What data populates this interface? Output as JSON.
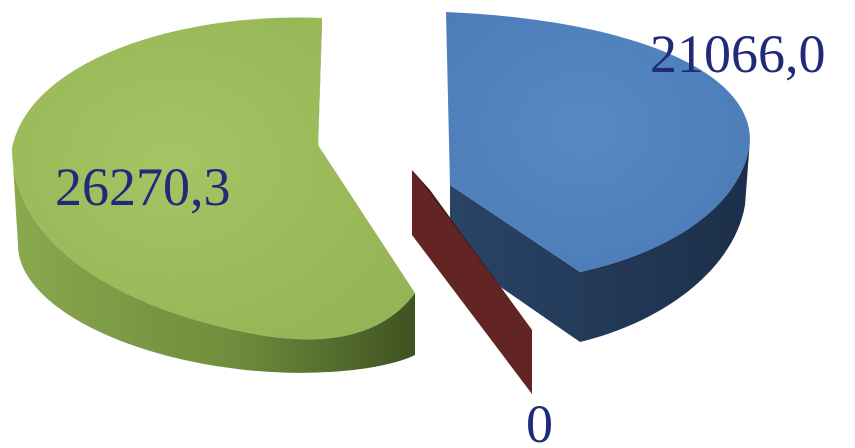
{
  "chart_data": {
    "type": "pie",
    "style": "3d-exploded",
    "title": "",
    "slices": [
      {
        "label": "21066,0",
        "value": 21066.0,
        "color": "#4f81bd",
        "side_color": "#1f3350"
      },
      {
        "label": "0",
        "value": 0,
        "color": "#632523",
        "side_color": "#4a1d1b"
      },
      {
        "label": "26270,3",
        "value": 26270.3,
        "color": "#9bbb59",
        "side_color": "#6e8b3d"
      }
    ],
    "legend": "none"
  }
}
